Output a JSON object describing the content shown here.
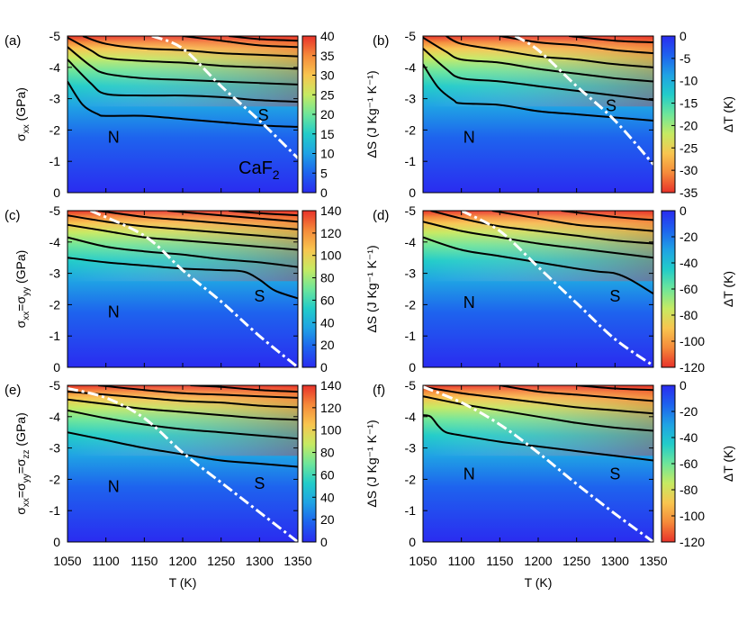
{
  "chart_data": {
    "type": "heatmap",
    "material_label": "CaF",
    "material_subscript": "2",
    "x_label": "T (K)",
    "x_range": [
      1050,
      1350
    ],
    "x_ticks": [
      1050,
      1100,
      1150,
      1200,
      1250,
      1300,
      1350
    ],
    "y_range": [
      0,
      -5
    ],
    "y_ticks": [
      0,
      -1,
      -2,
      -3,
      -4,
      -5
    ],
    "colors": {
      "entropy_scale": [
        "#2a2cf0",
        "#1e63ee",
        "#1fa2e4",
        "#22ccc9",
        "#6ee69a",
        "#c6ea62",
        "#f8c54f",
        "#f58a3a",
        "#e8322a"
      ],
      "boundary": "#ffffff",
      "contour": "#000000",
      "material_label": "#e020e0",
      "region_label": "#ffffff"
    },
    "panels": [
      {
        "label": "(a)",
        "row": 0,
        "col": 0,
        "quantity": "dS",
        "ylabel_main": "σ",
        "ylabel_sub": "xx",
        "ylabel_unit": " (GPa)",
        "cb_label": "ΔS (J Kg⁻¹ K⁻¹)",
        "cb_range": [
          0,
          40
        ],
        "cb_ticks": [
          0,
          5,
          10,
          15,
          20,
          25,
          30,
          35,
          40
        ],
        "region_N": "N",
        "region_S": "S",
        "N_at": [
          1110,
          -1.6
        ],
        "S_at": [
          1305,
          -2.3
        ],
        "boundary_T": [
          1160,
          1200,
          1250,
          1300,
          1350
        ],
        "boundary_sigma": [
          -5.0,
          -4.6,
          -3.4,
          -2.3,
          -1.1
        ],
        "contours": [
          {
            "T": [
              1050,
              1070,
              1090,
              1100,
              1150,
              1200,
              1250,
              1300,
              1350
            ],
            "sigma": [
              -3.55,
              -2.8,
              -2.5,
              -2.45,
              -2.45,
              -2.35,
              -2.25,
              -2.15,
              -2.1
            ]
          },
          {
            "T": [
              1050,
              1080,
              1100,
              1150,
              1200,
              1250,
              1300,
              1350
            ],
            "sigma": [
              -4.25,
              -3.5,
              -3.15,
              -3.1,
              -3.1,
              -3.05,
              -2.95,
              -2.9
            ]
          },
          {
            "T": [
              1050,
              1080,
              1100,
              1150,
              1200,
              1250,
              1300,
              1350
            ],
            "sigma": [
              -4.65,
              -4.05,
              -3.8,
              -3.65,
              -3.6,
              -3.55,
              -3.5,
              -3.45
            ]
          },
          {
            "T": [
              1050,
              1080,
              1100,
              1150,
              1200,
              1250,
              1300,
              1350
            ],
            "sigma": [
              -4.95,
              -4.55,
              -4.3,
              -4.2,
              -4.15,
              -4.05,
              -4.0,
              -3.95
            ]
          },
          {
            "T": [
              1070,
              1100,
              1150,
              1200,
              1250,
              1300,
              1350
            ],
            "sigma": [
              -5.0,
              -4.75,
              -4.6,
              -4.55,
              -4.45,
              -4.4,
              -4.35
            ]
          },
          {
            "T": [
              1200,
              1250,
              1300,
              1350
            ],
            "sigma": [
              -5.0,
              -4.85,
              -4.7,
              -4.65
            ]
          },
          {
            "T": [
              1260,
              1300,
              1350
            ],
            "sigma": [
              -5.0,
              -4.9,
              -4.85
            ]
          }
        ]
      },
      {
        "label": "(b)",
        "row": 0,
        "col": 1,
        "quantity": "dT",
        "cb_label": "ΔT (K)",
        "cb_range": [
          -35,
          0
        ],
        "cb_ticks": [
          0,
          -5,
          -10,
          -15,
          -20,
          -25,
          -30,
          -35
        ],
        "region_N": "N",
        "region_S": "S",
        "N_at": [
          1110,
          -1.6
        ],
        "S_at": [
          1295,
          -2.6
        ],
        "boundary_T": [
          1170,
          1200,
          1250,
          1300,
          1350
        ],
        "boundary_sigma": [
          -5.0,
          -4.55,
          -3.4,
          -2.3,
          -0.9
        ],
        "contours": [
          {
            "T": [
              1050,
              1070,
              1090,
              1100,
              1150,
              1200,
              1250,
              1300,
              1350
            ],
            "sigma": [
              -4.1,
              -3.35,
              -2.95,
              -2.85,
              -2.8,
              -2.6,
              -2.5,
              -2.4,
              -2.3
            ]
          },
          {
            "T": [
              1050,
              1080,
              1100,
              1150,
              1200,
              1250,
              1300,
              1350
            ],
            "sigma": [
              -4.6,
              -3.95,
              -3.65,
              -3.55,
              -3.4,
              -3.25,
              -3.1,
              -2.95
            ]
          },
          {
            "T": [
              1050,
              1080,
              1100,
              1150,
              1200,
              1250,
              1300,
              1350
            ],
            "sigma": [
              -4.95,
              -4.5,
              -4.25,
              -4.15,
              -3.95,
              -3.8,
              -3.65,
              -3.55
            ]
          },
          {
            "T": [
              1080,
              1100,
              1150,
              1200,
              1250,
              1300,
              1350
            ],
            "sigma": [
              -5.0,
              -4.75,
              -4.55,
              -4.35,
              -4.25,
              -4.1,
              -4.0
            ]
          },
          {
            "T": [
              1150,
              1200,
              1250,
              1300,
              1350
            ],
            "sigma": [
              -5.0,
              -4.8,
              -4.7,
              -4.55,
              -4.45
            ]
          },
          {
            "T": [
              1240,
              1300,
              1350
            ],
            "sigma": [
              -5.0,
              -4.85,
              -4.8
            ]
          }
        ]
      },
      {
        "label": "(c)",
        "row": 1,
        "col": 0,
        "quantity": "dS",
        "ylabel_main": "σ",
        "ylabel_sub": "xx",
        "ylabel_mid": "=σ",
        "ylabel_sub2": "yy",
        "ylabel_unit": " (GPa)",
        "cb_label": "ΔS (J Kg⁻¹ K⁻¹)",
        "cb_range": [
          0,
          140
        ],
        "cb_ticks": [
          0,
          20,
          40,
          60,
          80,
          100,
          120,
          140
        ],
        "region_N": "N",
        "region_S": "S",
        "N_at": [
          1110,
          -1.6
        ],
        "S_at": [
          1300,
          -2.1
        ],
        "boundary_T": [
          1080,
          1150,
          1200,
          1250,
          1300,
          1350
        ],
        "boundary_sigma": [
          -5.0,
          -4.2,
          -3.1,
          -2.1,
          -1.0,
          0.0
        ],
        "contours": [
          {
            "T": [
              1050,
              1100,
              1150,
              1200,
              1250,
              1280,
              1300,
              1320,
              1350
            ],
            "sigma": [
              -3.5,
              -3.35,
              -3.25,
              -3.15,
              -3.1,
              -3.05,
              -2.8,
              -2.45,
              -2.2
            ]
          },
          {
            "T": [
              1050,
              1100,
              1150,
              1200,
              1250,
              1300,
              1350
            ],
            "sigma": [
              -4.15,
              -3.85,
              -3.7,
              -3.6,
              -3.45,
              -3.35,
              -3.2
            ]
          },
          {
            "T": [
              1050,
              1100,
              1150,
              1200,
              1250,
              1300,
              1350
            ],
            "sigma": [
              -4.55,
              -4.35,
              -4.15,
              -4.05,
              -3.95,
              -3.85,
              -3.75
            ]
          },
          {
            "T": [
              1050,
              1100,
              1150,
              1200,
              1250,
              1300,
              1350
            ],
            "sigma": [
              -4.85,
              -4.65,
              -4.5,
              -4.4,
              -4.3,
              -4.2,
              -4.1
            ]
          },
          {
            "T": [
              1090,
              1150,
              1200,
              1250,
              1300,
              1350
            ],
            "sigma": [
              -5.0,
              -4.8,
              -4.7,
              -4.6,
              -4.5,
              -4.4
            ]
          },
          {
            "T": [
              1180,
              1250,
              1300,
              1350
            ],
            "sigma": [
              -5.0,
              -4.85,
              -4.75,
              -4.65
            ]
          },
          {
            "T": [
              1260,
              1300,
              1350
            ],
            "sigma": [
              -5.0,
              -4.92,
              -4.85
            ]
          }
        ]
      },
      {
        "label": "(d)",
        "row": 1,
        "col": 1,
        "quantity": "dT",
        "cb_label": "ΔT (K)",
        "cb_range": [
          -120,
          0
        ],
        "cb_ticks": [
          0,
          -20,
          -40,
          -60,
          -80,
          -100,
          -120
        ],
        "region_N": "N",
        "region_S": "S",
        "N_at": [
          1110,
          -1.9
        ],
        "S_at": [
          1300,
          -2.1
        ],
        "boundary_T": [
          1100,
          1150,
          1200,
          1250,
          1300,
          1350
        ],
        "boundary_sigma": [
          -5.0,
          -4.35,
          -3.2,
          -2.05,
          -0.9,
          -0.05
        ],
        "contours": [
          {
            "T": [
              1050,
              1100,
              1150,
              1200,
              1250,
              1280,
              1300,
              1320,
              1350
            ],
            "sigma": [
              -4.15,
              -3.75,
              -3.55,
              -3.35,
              -3.15,
              -3.05,
              -3.0,
              -2.8,
              -2.35
            ]
          },
          {
            "T": [
              1050,
              1100,
              1150,
              1200,
              1250,
              1300,
              1350
            ],
            "sigma": [
              -4.65,
              -4.35,
              -4.15,
              -3.95,
              -3.8,
              -3.65,
              -3.5
            ]
          },
          {
            "T": [
              1060,
              1100,
              1150,
              1200,
              1250,
              1300,
              1350
            ],
            "sigma": [
              -5.0,
              -4.75,
              -4.5,
              -4.35,
              -4.2,
              -4.05,
              -3.95
            ]
          },
          {
            "T": [
              1140,
              1200,
              1250,
              1300,
              1350
            ],
            "sigma": [
              -5.0,
              -4.75,
              -4.55,
              -4.45,
              -4.35
            ]
          },
          {
            "T": [
              1230,
              1300,
              1350
            ],
            "sigma": [
              -5.0,
              -4.8,
              -4.7
            ]
          }
        ]
      },
      {
        "label": "(e)",
        "row": 2,
        "col": 0,
        "quantity": "dS",
        "ylabel_main": "σ",
        "ylabel_sub": "xx",
        "ylabel_mid": "=σ",
        "ylabel_sub2": "yy",
        "ylabel_mid2": "=σ",
        "ylabel_sub3": "zz",
        "ylabel_unit": " (GPa)",
        "cb_label": "ΔS (J Kg⁻¹ K⁻¹)",
        "cb_range": [
          0,
          140
        ],
        "cb_ticks": [
          0,
          20,
          40,
          60,
          80,
          100,
          120,
          140
        ],
        "region_N": "N",
        "region_S": "S",
        "N_at": [
          1110,
          -1.6
        ],
        "S_at": [
          1300,
          -1.7
        ],
        "boundary_T": [
          1050,
          1100,
          1150,
          1200,
          1250,
          1300,
          1350
        ],
        "boundary_sigma": [
          -4.9,
          -4.6,
          -3.95,
          -2.85,
          -1.9,
          -0.95,
          0.0
        ],
        "contours": [
          {
            "T": [
              1050,
              1100,
              1150,
              1200,
              1250,
              1300,
              1350
            ],
            "sigma": [
              -3.5,
              -3.25,
              -3.0,
              -2.8,
              -2.6,
              -2.5,
              -2.4
            ]
          },
          {
            "T": [
              1050,
              1100,
              1150,
              1200,
              1250,
              1300,
              1350
            ],
            "sigma": [
              -4.2,
              -3.95,
              -3.75,
              -3.6,
              -3.5,
              -3.4,
              -3.3
            ]
          },
          {
            "T": [
              1050,
              1100,
              1150,
              1200,
              1250,
              1300,
              1350
            ],
            "sigma": [
              -4.55,
              -4.4,
              -4.25,
              -4.15,
              -4.05,
              -3.95,
              -3.9
            ]
          },
          {
            "T": [
              1050,
              1100,
              1150,
              1200,
              1250,
              1300,
              1350
            ],
            "sigma": [
              -4.8,
              -4.7,
              -4.6,
              -4.5,
              -4.45,
              -4.35,
              -4.3
            ]
          },
          {
            "T": [
              1090,
              1150,
              1200,
              1250,
              1300,
              1350
            ],
            "sigma": [
              -5.0,
              -4.85,
              -4.75,
              -4.7,
              -4.65,
              -4.6
            ]
          },
          {
            "T": [
              1210,
              1250,
              1300,
              1350
            ],
            "sigma": [
              -5.0,
              -4.95,
              -4.85,
              -4.8
            ]
          }
        ]
      },
      {
        "label": "(f)",
        "row": 2,
        "col": 1,
        "quantity": "dT",
        "cb_label": "ΔT (K)",
        "cb_range": [
          -120,
          0
        ],
        "cb_ticks": [
          0,
          -20,
          -40,
          -60,
          -80,
          -100,
          -120
        ],
        "region_N": "N",
        "region_S": "S",
        "N_at": [
          1110,
          -2.0
        ],
        "S_at": [
          1300,
          -2.0
        ],
        "boundary_T": [
          1050,
          1100,
          1150,
          1200,
          1250,
          1300,
          1350
        ],
        "boundary_sigma": [
          -4.95,
          -4.45,
          -3.75,
          -2.85,
          -1.85,
          -0.9,
          0.0
        ],
        "contours": [
          {
            "T": [
              1050,
              1060,
              1070,
              1080,
              1100,
              1150,
              1200,
              1250,
              1300,
              1350
            ],
            "sigma": [
              -4.05,
              -4.0,
              -3.7,
              -3.5,
              -3.4,
              -3.2,
              -3.05,
              -2.9,
              -2.75,
              -2.6
            ]
          },
          {
            "T": [
              1050,
              1100,
              1150,
              1200,
              1250,
              1300,
              1350
            ],
            "sigma": [
              -4.65,
              -4.4,
              -4.2,
              -4.0,
              -3.8,
              -3.65,
              -3.55
            ]
          },
          {
            "T": [
              1050,
              1100,
              1150,
              1200,
              1250,
              1300,
              1350
            ],
            "sigma": [
              -4.95,
              -4.75,
              -4.6,
              -4.45,
              -4.3,
              -4.2,
              -4.1
            ]
          },
          {
            "T": [
              1150,
              1200,
              1250,
              1300,
              1350
            ],
            "sigma": [
              -5.0,
              -4.8,
              -4.7,
              -4.6,
              -4.5
            ]
          },
          {
            "T": [
              1250,
              1300,
              1350
            ],
            "sigma": [
              -5.0,
              -4.9,
              -4.85
            ]
          }
        ]
      }
    ]
  }
}
